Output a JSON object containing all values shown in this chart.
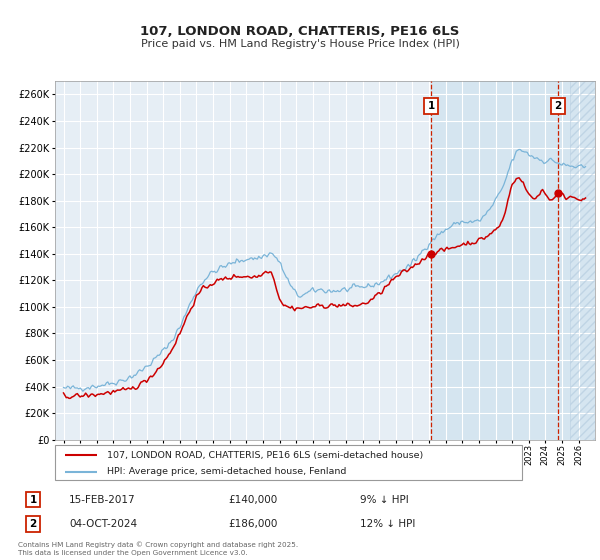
{
  "title": "107, LONDON ROAD, CHATTERIS, PE16 6LS",
  "subtitle": "Price paid vs. HM Land Registry's House Price Index (HPI)",
  "legend_line1": "107, LONDON ROAD, CHATTERIS, PE16 6LS (semi-detached house)",
  "legend_line2": "HPI: Average price, semi-detached house, Fenland",
  "footnote": "Contains HM Land Registry data © Crown copyright and database right 2025.\nThis data is licensed under the Open Government Licence v3.0.",
  "annotation1": {
    "label": "1",
    "date_str": "15-FEB-2017",
    "price": "£140,000",
    "pct": "9% ↓ HPI",
    "x_year": 2017.12,
    "y_val": 140000
  },
  "annotation2": {
    "label": "2",
    "date_str": "04-OCT-2024",
    "price": "£186,000",
    "pct": "12% ↓ HPI",
    "x_year": 2024.76,
    "y_val": 186000
  },
  "vline1_x": 2017.12,
  "vline2_x": 2024.76,
  "shade_start": 2017.12,
  "shade_end": 2027.0,
  "ylim": [
    0,
    270000
  ],
  "xlim_left": 1994.5,
  "xlim_right": 2027.0,
  "ytick_step": 20000,
  "hpi_color": "#7ab4d8",
  "price_color": "#cc0000",
  "bg_color": "#e6eef5",
  "shade_color": "#d5e5f0",
  "hatch_color": "#aac4da",
  "grid_color": "#ffffff",
  "box_color": "#cc2200",
  "hatch_region_start": 2025.5
}
